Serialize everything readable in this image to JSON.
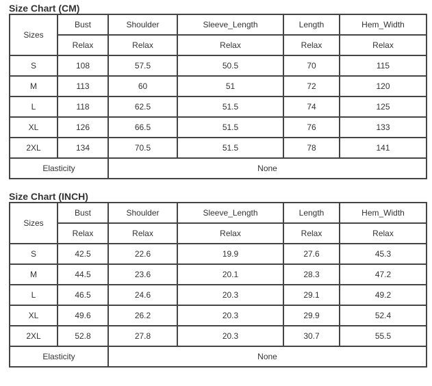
{
  "tables": [
    {
      "title": "Size Chart (CM)",
      "headers": [
        "Sizes",
        "Bust",
        "Shoulder",
        "Sleeve_Length",
        "Length",
        "Hem_Width"
      ],
      "subheaders": [
        "Relax",
        "Relax",
        "Relax",
        "Relax",
        "Relax"
      ],
      "rows": [
        [
          "S",
          "108",
          "57.5",
          "50.5",
          "70",
          "115"
        ],
        [
          "M",
          "113",
          "60",
          "51",
          "72",
          "120"
        ],
        [
          "L",
          "118",
          "62.5",
          "51.5",
          "74",
          "125"
        ],
        [
          "XL",
          "126",
          "66.5",
          "51.5",
          "76",
          "133"
        ],
        [
          "2XL",
          "134",
          "70.5",
          "51.5",
          "78",
          "141"
        ]
      ],
      "elasticity_label": "Elasticity",
      "elasticity_value": "None"
    },
    {
      "title": "Size Chart (INCH)",
      "headers": [
        "Sizes",
        "Bust",
        "Shoulder",
        "Sleeve_Length",
        "Length",
        "Hem_Width"
      ],
      "subheaders": [
        "Relax",
        "Relax",
        "Relax",
        "Relax",
        "Relax"
      ],
      "rows": [
        [
          "S",
          "42.5",
          "22.6",
          "19.9",
          "27.6",
          "45.3"
        ],
        [
          "M",
          "44.5",
          "23.6",
          "20.1",
          "28.3",
          "47.2"
        ],
        [
          "L",
          "46.5",
          "24.6",
          "20.3",
          "29.1",
          "49.2"
        ],
        [
          "XL",
          "49.6",
          "26.2",
          "20.3",
          "29.9",
          "52.4"
        ],
        [
          "2XL",
          "52.8",
          "27.8",
          "20.3",
          "30.7",
          "55.5"
        ]
      ],
      "elasticity_label": "Elasticity",
      "elasticity_value": "None"
    }
  ]
}
